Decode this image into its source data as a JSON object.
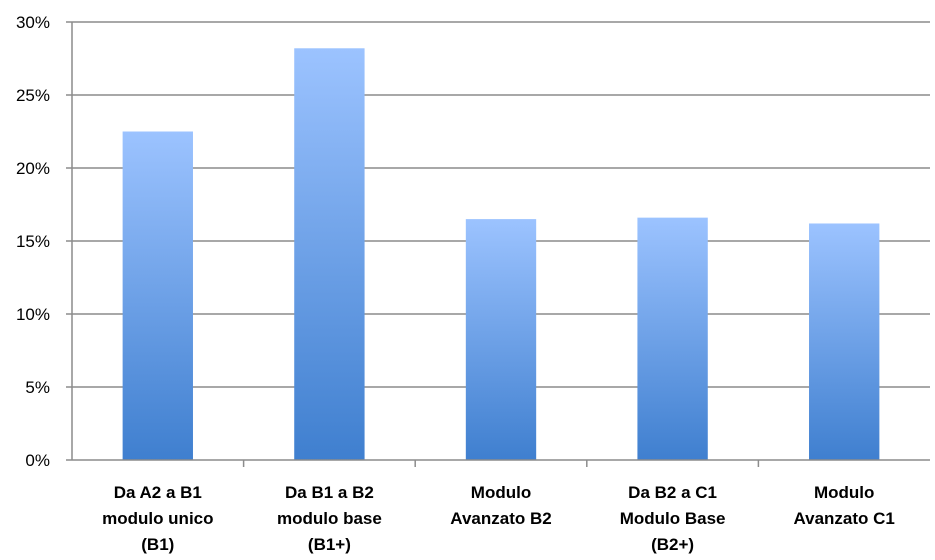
{
  "chart_data": {
    "type": "bar",
    "title": "",
    "xlabel": "",
    "ylabel": "",
    "categories": [
      [
        "Da A2 a B1",
        "modulo unico",
        "(B1)"
      ],
      [
        "Da B1 a B2",
        "modulo base",
        "(B1+)"
      ],
      [
        "Modulo",
        "Avanzato B2"
      ],
      [
        "Da B2 a C1",
        "Modulo Base",
        "(B2+)"
      ],
      [
        "Modulo",
        "Avanzato C1"
      ]
    ],
    "values": [
      22.5,
      28.2,
      16.5,
      16.6,
      16.2
    ],
    "ylim": [
      0,
      30
    ],
    "yticks": [
      0,
      5,
      10,
      15,
      20,
      25,
      30
    ],
    "ytick_format": "%",
    "grid": true,
    "legend": "none",
    "colors": {
      "bar_top": "#9CC3FF",
      "bar_bottom": "#3F7FCF",
      "grid": "#8C8C8C",
      "axis": "#8C8C8C"
    }
  }
}
